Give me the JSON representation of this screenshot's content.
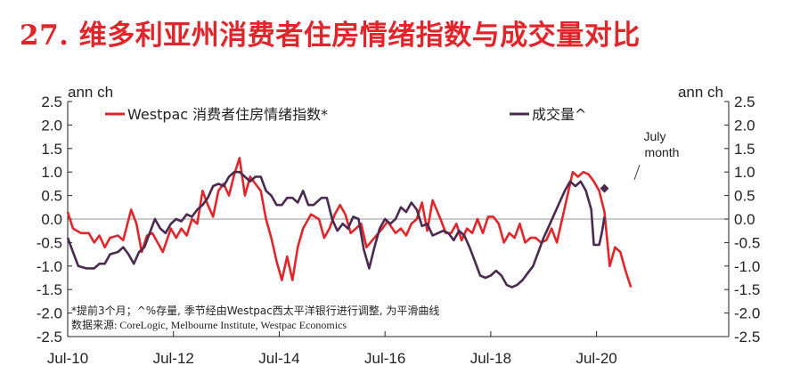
{
  "title": {
    "number": "27.",
    "text": "维多利亚州消费者住房情绪指数与成交量对比"
  },
  "chart_data": {
    "type": "line",
    "units_left": "ann ch",
    "units_right": "ann ch",
    "ylim": [
      -2.5,
      2.5
    ],
    "yticks": [
      "2.5",
      "2.0",
      "1.5",
      "1.0",
      "0.5",
      "0.0",
      "-0.5",
      "-1.0",
      "-1.5",
      "-2.0",
      "-2.5"
    ],
    "ytick_values": [
      2.5,
      2.0,
      1.5,
      1.0,
      0.5,
      0.0,
      -0.5,
      -1.0,
      -1.5,
      -2.0,
      -2.5
    ],
    "xlim": [
      2010.5,
      2023.0
    ],
    "xticks": [
      "Jul-10",
      "Jul-12",
      "Jul-14",
      "Jul-16",
      "Jul-18",
      "Jul-20"
    ],
    "xtick_values": [
      2010.5,
      2012.5,
      2014.5,
      2016.5,
      2018.5,
      2020.5
    ],
    "legend_placement": "top",
    "series": [
      {
        "name": "Westpac 消费者住房情绪指数*",
        "color": "#e0262b",
        "points": [
          [
            2010.5,
            0.15
          ],
          [
            2010.6,
            -0.2
          ],
          [
            2010.75,
            -0.3
          ],
          [
            2010.9,
            -0.3
          ],
          [
            2011.0,
            -0.5
          ],
          [
            2011.1,
            -0.35
          ],
          [
            2011.2,
            -0.6
          ],
          [
            2011.3,
            -0.4
          ],
          [
            2011.45,
            -0.35
          ],
          [
            2011.55,
            -0.45
          ],
          [
            2011.7,
            0.2
          ],
          [
            2011.8,
            -0.1
          ],
          [
            2011.9,
            -0.7
          ],
          [
            2012.0,
            -0.35
          ],
          [
            2012.1,
            -0.3
          ],
          [
            2012.2,
            -0.5
          ],
          [
            2012.3,
            -0.7
          ],
          [
            2012.45,
            -0.2
          ],
          [
            2012.55,
            -0.4
          ],
          [
            2012.65,
            -0.2
          ],
          [
            2012.75,
            -0.35
          ],
          [
            2012.85,
            0.0
          ],
          [
            2012.95,
            -0.1
          ],
          [
            2013.05,
            0.6
          ],
          [
            2013.15,
            0.3
          ],
          [
            2013.25,
            0.05
          ],
          [
            2013.35,
            0.6
          ],
          [
            2013.45,
            0.75
          ],
          [
            2013.55,
            0.5
          ],
          [
            2013.65,
            0.95
          ],
          [
            2013.75,
            1.3
          ],
          [
            2013.85,
            0.5
          ],
          [
            2013.95,
            0.9
          ],
          [
            2014.05,
            0.75
          ],
          [
            2014.15,
            0.6
          ],
          [
            2014.25,
            0.0
          ],
          [
            2014.35,
            -0.4
          ],
          [
            2014.45,
            -0.9
          ],
          [
            2014.55,
            -1.3
          ],
          [
            2014.65,
            -0.8
          ],
          [
            2014.75,
            -1.3
          ],
          [
            2014.85,
            -0.6
          ],
          [
            2014.95,
            -0.2
          ],
          [
            2015.1,
            0.1
          ],
          [
            2015.25,
            0.0
          ],
          [
            2015.35,
            -0.4
          ],
          [
            2015.45,
            -0.2
          ],
          [
            2015.55,
            0.1
          ],
          [
            2015.65,
            0.3
          ],
          [
            2015.75,
            0.1
          ],
          [
            2015.85,
            -0.3
          ],
          [
            2015.95,
            -0.2
          ],
          [
            2016.05,
            -0.1
          ],
          [
            2016.15,
            -0.6
          ],
          [
            2016.3,
            -0.4
          ],
          [
            2016.45,
            -0.2
          ],
          [
            2016.55,
            -0.05
          ],
          [
            2016.7,
            -0.3
          ],
          [
            2016.8,
            -0.2
          ],
          [
            2016.9,
            -0.35
          ],
          [
            2017.0,
            -0.1
          ],
          [
            2017.1,
            0.0
          ],
          [
            2017.2,
            0.35
          ],
          [
            2017.3,
            -0.25
          ],
          [
            2017.4,
            0.4
          ],
          [
            2017.55,
            0.0
          ],
          [
            2017.65,
            -0.3
          ],
          [
            2017.75,
            -0.3
          ],
          [
            2017.85,
            -0.1
          ],
          [
            2017.95,
            -0.45
          ],
          [
            2018.05,
            -0.2
          ],
          [
            2018.15,
            -0.3
          ],
          [
            2018.25,
            0.0
          ],
          [
            2018.35,
            -0.3
          ],
          [
            2018.45,
            0.05
          ],
          [
            2018.55,
            0.05
          ],
          [
            2018.65,
            -0.1
          ],
          [
            2018.75,
            -0.5
          ],
          [
            2018.85,
            -0.3
          ],
          [
            2018.95,
            -0.4
          ],
          [
            2019.05,
            -0.1
          ],
          [
            2019.15,
            -0.5
          ],
          [
            2019.25,
            -0.4
          ],
          [
            2019.35,
            -0.4
          ],
          [
            2019.45,
            -0.5
          ],
          [
            2019.55,
            -0.45
          ],
          [
            2019.65,
            -0.2
          ],
          [
            2019.75,
            -0.5
          ],
          [
            2019.85,
            0.0
          ],
          [
            2019.95,
            0.5
          ],
          [
            2020.05,
            1.0
          ],
          [
            2020.15,
            0.9
          ],
          [
            2020.25,
            1.0
          ],
          [
            2020.35,
            0.95
          ],
          [
            2020.45,
            0.8
          ],
          [
            2020.55,
            0.6
          ],
          [
            2020.65,
            0.15
          ],
          [
            2020.75,
            -1.0
          ],
          [
            2020.85,
            -0.6
          ],
          [
            2020.95,
            -0.7
          ],
          [
            2021.05,
            -1.1
          ],
          [
            2021.15,
            -1.45
          ]
        ]
      },
      {
        "name": "成交量^",
        "color": "#4a2a4e",
        "points": [
          [
            2010.5,
            -0.4
          ],
          [
            2010.6,
            -0.7
          ],
          [
            2010.7,
            -1.0
          ],
          [
            2010.85,
            -1.05
          ],
          [
            2011.0,
            -1.05
          ],
          [
            2011.1,
            -0.95
          ],
          [
            2011.2,
            -0.95
          ],
          [
            2011.3,
            -0.75
          ],
          [
            2011.45,
            -0.7
          ],
          [
            2011.55,
            -0.6
          ],
          [
            2011.65,
            -0.75
          ],
          [
            2011.75,
            -0.95
          ],
          [
            2011.85,
            -0.7
          ],
          [
            2011.95,
            -0.6
          ],
          [
            2012.05,
            -0.3
          ],
          [
            2012.15,
            0.0
          ],
          [
            2012.25,
            -0.2
          ],
          [
            2012.35,
            -0.3
          ],
          [
            2012.45,
            -0.1
          ],
          [
            2012.55,
            0.0
          ],
          [
            2012.65,
            -0.05
          ],
          [
            2012.75,
            0.1
          ],
          [
            2012.85,
            0.05
          ],
          [
            2012.95,
            0.2
          ],
          [
            2013.05,
            0.3
          ],
          [
            2013.15,
            0.45
          ],
          [
            2013.25,
            0.7
          ],
          [
            2013.35,
            0.75
          ],
          [
            2013.45,
            0.7
          ],
          [
            2013.55,
            0.9
          ],
          [
            2013.65,
            1.0
          ],
          [
            2013.75,
            1.0
          ],
          [
            2013.85,
            0.9
          ],
          [
            2013.95,
            0.8
          ],
          [
            2014.05,
            0.9
          ],
          [
            2014.15,
            0.9
          ],
          [
            2014.25,
            0.6
          ],
          [
            2014.35,
            0.5
          ],
          [
            2014.45,
            0.3
          ],
          [
            2014.55,
            0.3
          ],
          [
            2014.65,
            0.45
          ],
          [
            2014.75,
            0.45
          ],
          [
            2014.85,
            0.35
          ],
          [
            2014.95,
            0.6
          ],
          [
            2015.05,
            0.3
          ],
          [
            2015.15,
            0.3
          ],
          [
            2015.3,
            0.45
          ],
          [
            2015.4,
            0.45
          ],
          [
            2015.5,
            0.0
          ],
          [
            2015.6,
            -0.25
          ],
          [
            2015.7,
            -0.1
          ],
          [
            2015.8,
            -0.2
          ],
          [
            2015.9,
            0.05
          ],
          [
            2016.0,
            0.0
          ],
          [
            2016.1,
            -0.65
          ],
          [
            2016.2,
            -1.05
          ],
          [
            2016.3,
            -0.6
          ],
          [
            2016.4,
            -0.2
          ],
          [
            2016.5,
            0.0
          ],
          [
            2016.6,
            -0.1
          ],
          [
            2016.7,
            0.0
          ],
          [
            2016.8,
            0.25
          ],
          [
            2016.9,
            0.15
          ],
          [
            2017.0,
            0.35
          ],
          [
            2017.1,
            0.2
          ],
          [
            2017.2,
            -0.15
          ],
          [
            2017.3,
            -0.1
          ],
          [
            2017.4,
            -0.35
          ],
          [
            2017.5,
            -0.3
          ],
          [
            2017.6,
            -0.25
          ],
          [
            2017.7,
            -0.3
          ],
          [
            2017.8,
            -0.45
          ],
          [
            2017.9,
            -0.25
          ],
          [
            2018.0,
            -0.35
          ],
          [
            2018.1,
            -0.6
          ],
          [
            2018.2,
            -0.9
          ],
          [
            2018.3,
            -1.2
          ],
          [
            2018.4,
            -1.25
          ],
          [
            2018.5,
            -1.2
          ],
          [
            2018.6,
            -1.1
          ],
          [
            2018.7,
            -1.2
          ],
          [
            2018.8,
            -1.4
          ],
          [
            2018.9,
            -1.45
          ],
          [
            2019.0,
            -1.4
          ],
          [
            2019.1,
            -1.3
          ],
          [
            2019.2,
            -1.15
          ],
          [
            2019.3,
            -1.0
          ],
          [
            2019.4,
            -0.7
          ],
          [
            2019.5,
            -0.4
          ],
          [
            2019.6,
            -0.15
          ],
          [
            2019.7,
            0.1
          ],
          [
            2019.8,
            0.35
          ],
          [
            2019.9,
            0.6
          ],
          [
            2020.0,
            0.8
          ],
          [
            2020.1,
            0.7
          ],
          [
            2020.2,
            0.8
          ],
          [
            2020.3,
            0.6
          ],
          [
            2020.4,
            0.2
          ],
          [
            2020.45,
            -0.55
          ],
          [
            2020.55,
            -0.55
          ],
          [
            2020.6,
            -0.3
          ],
          [
            2020.65,
            0.05
          ]
        ]
      },
      {
        "name": "July month",
        "color": "#4a2a4e",
        "points": [
          [
            2020.65,
            0.65
          ]
        ]
      }
    ],
    "annotations": [
      {
        "text_line1": "July",
        "text_line2": "month"
      }
    ],
    "notes": [
      "*提前3个月；^%存量, 季节经由Westpac西太平洋银行进行调整, 为平滑曲线",
      "数据来源: CoreLogic, Melbourne Institute, Westpac Economics"
    ]
  }
}
